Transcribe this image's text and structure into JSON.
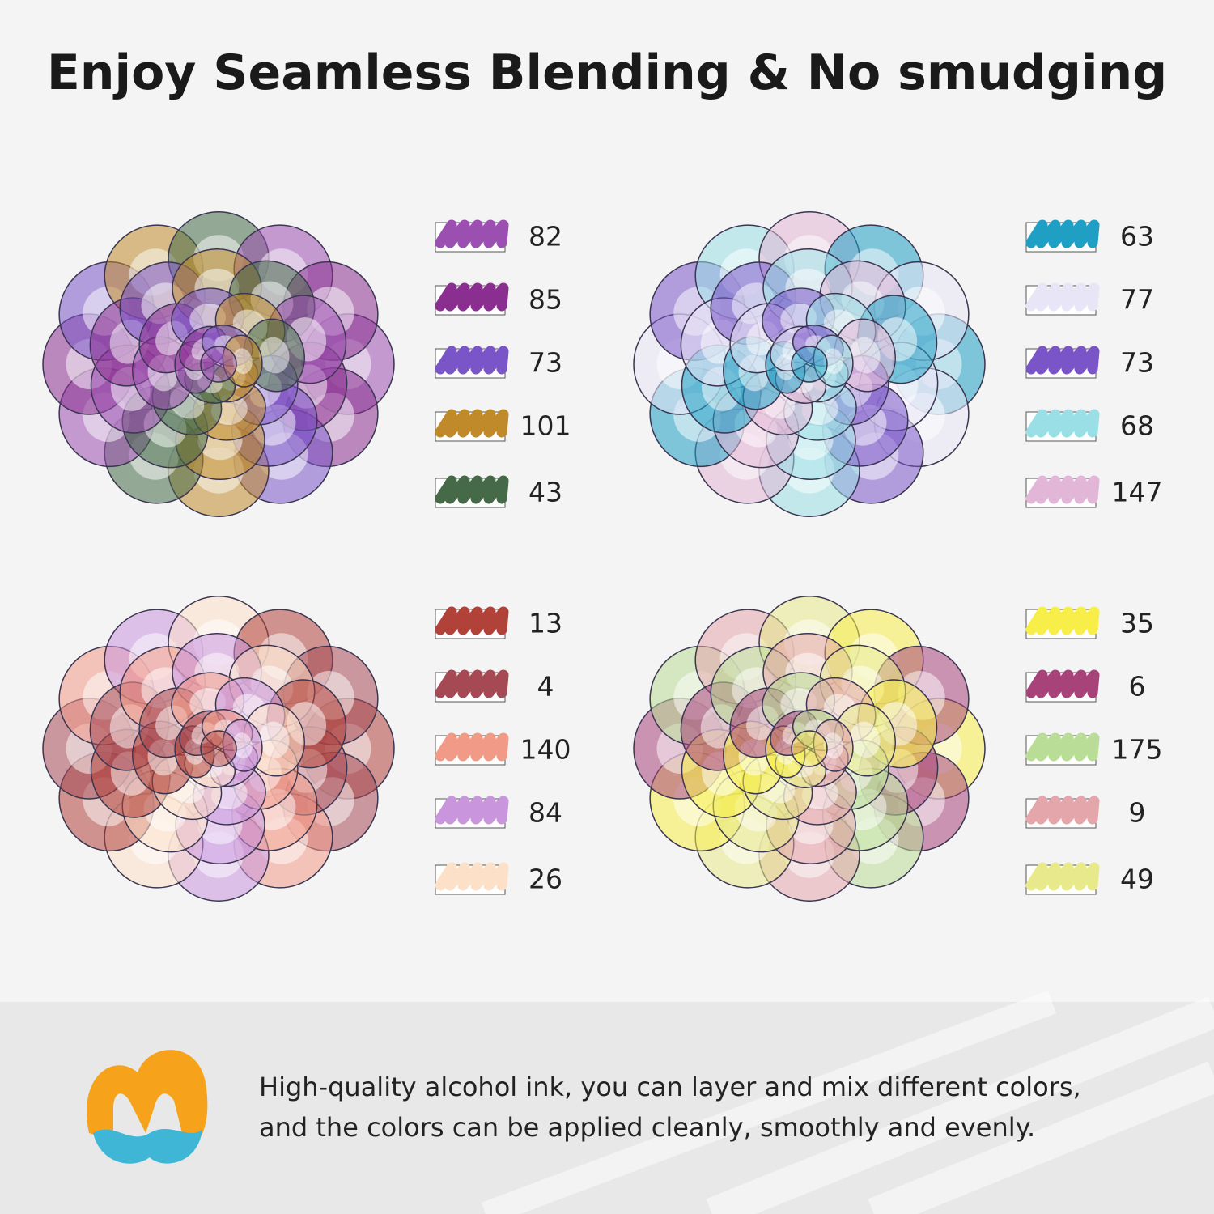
{
  "header": {
    "title": "Enjoy Seamless Blending & No smudging"
  },
  "panels": [
    {
      "swatches": [
        {
          "code": 82,
          "color": "#9b4fb0"
        },
        {
          "code": 85,
          "color": "#8a2f8f"
        },
        {
          "code": 73,
          "color": "#7a55c8"
        },
        {
          "code": 101,
          "color": "#c08a2a"
        },
        {
          "code": 43,
          "color": "#466a48"
        }
      ]
    },
    {
      "swatches": [
        {
          "code": 63,
          "color": "#1f9fc4"
        },
        {
          "code": 77,
          "color": "#e8e6f6"
        },
        {
          "code": 73,
          "color": "#7a55c8"
        },
        {
          "code": 68,
          "color": "#9adfe6"
        },
        {
          "code": 147,
          "color": "#e1b6d6"
        }
      ]
    },
    {
      "swatches": [
        {
          "code": 13,
          "color": "#b0423a"
        },
        {
          "code": 4,
          "color": "#a54a55"
        },
        {
          "code": 140,
          "color": "#f29a88"
        },
        {
          "code": 84,
          "color": "#c996de"
        },
        {
          "code": 26,
          "color": "#fde0c8"
        }
      ]
    },
    {
      "swatches": [
        {
          "code": 35,
          "color": "#f7ee4a"
        },
        {
          "code": 6,
          "color": "#a8437a"
        },
        {
          "code": 175,
          "color": "#b9dc96"
        },
        {
          "code": 9,
          "color": "#e4a6ab"
        },
        {
          "code": 49,
          "color": "#e8e98a"
        }
      ]
    }
  ],
  "footer": {
    "lines": [
      "High-quality alcohol ink, you can layer and mix different colors,",
      "and the colors can be applied cleanly, smoothly and evenly."
    ]
  }
}
